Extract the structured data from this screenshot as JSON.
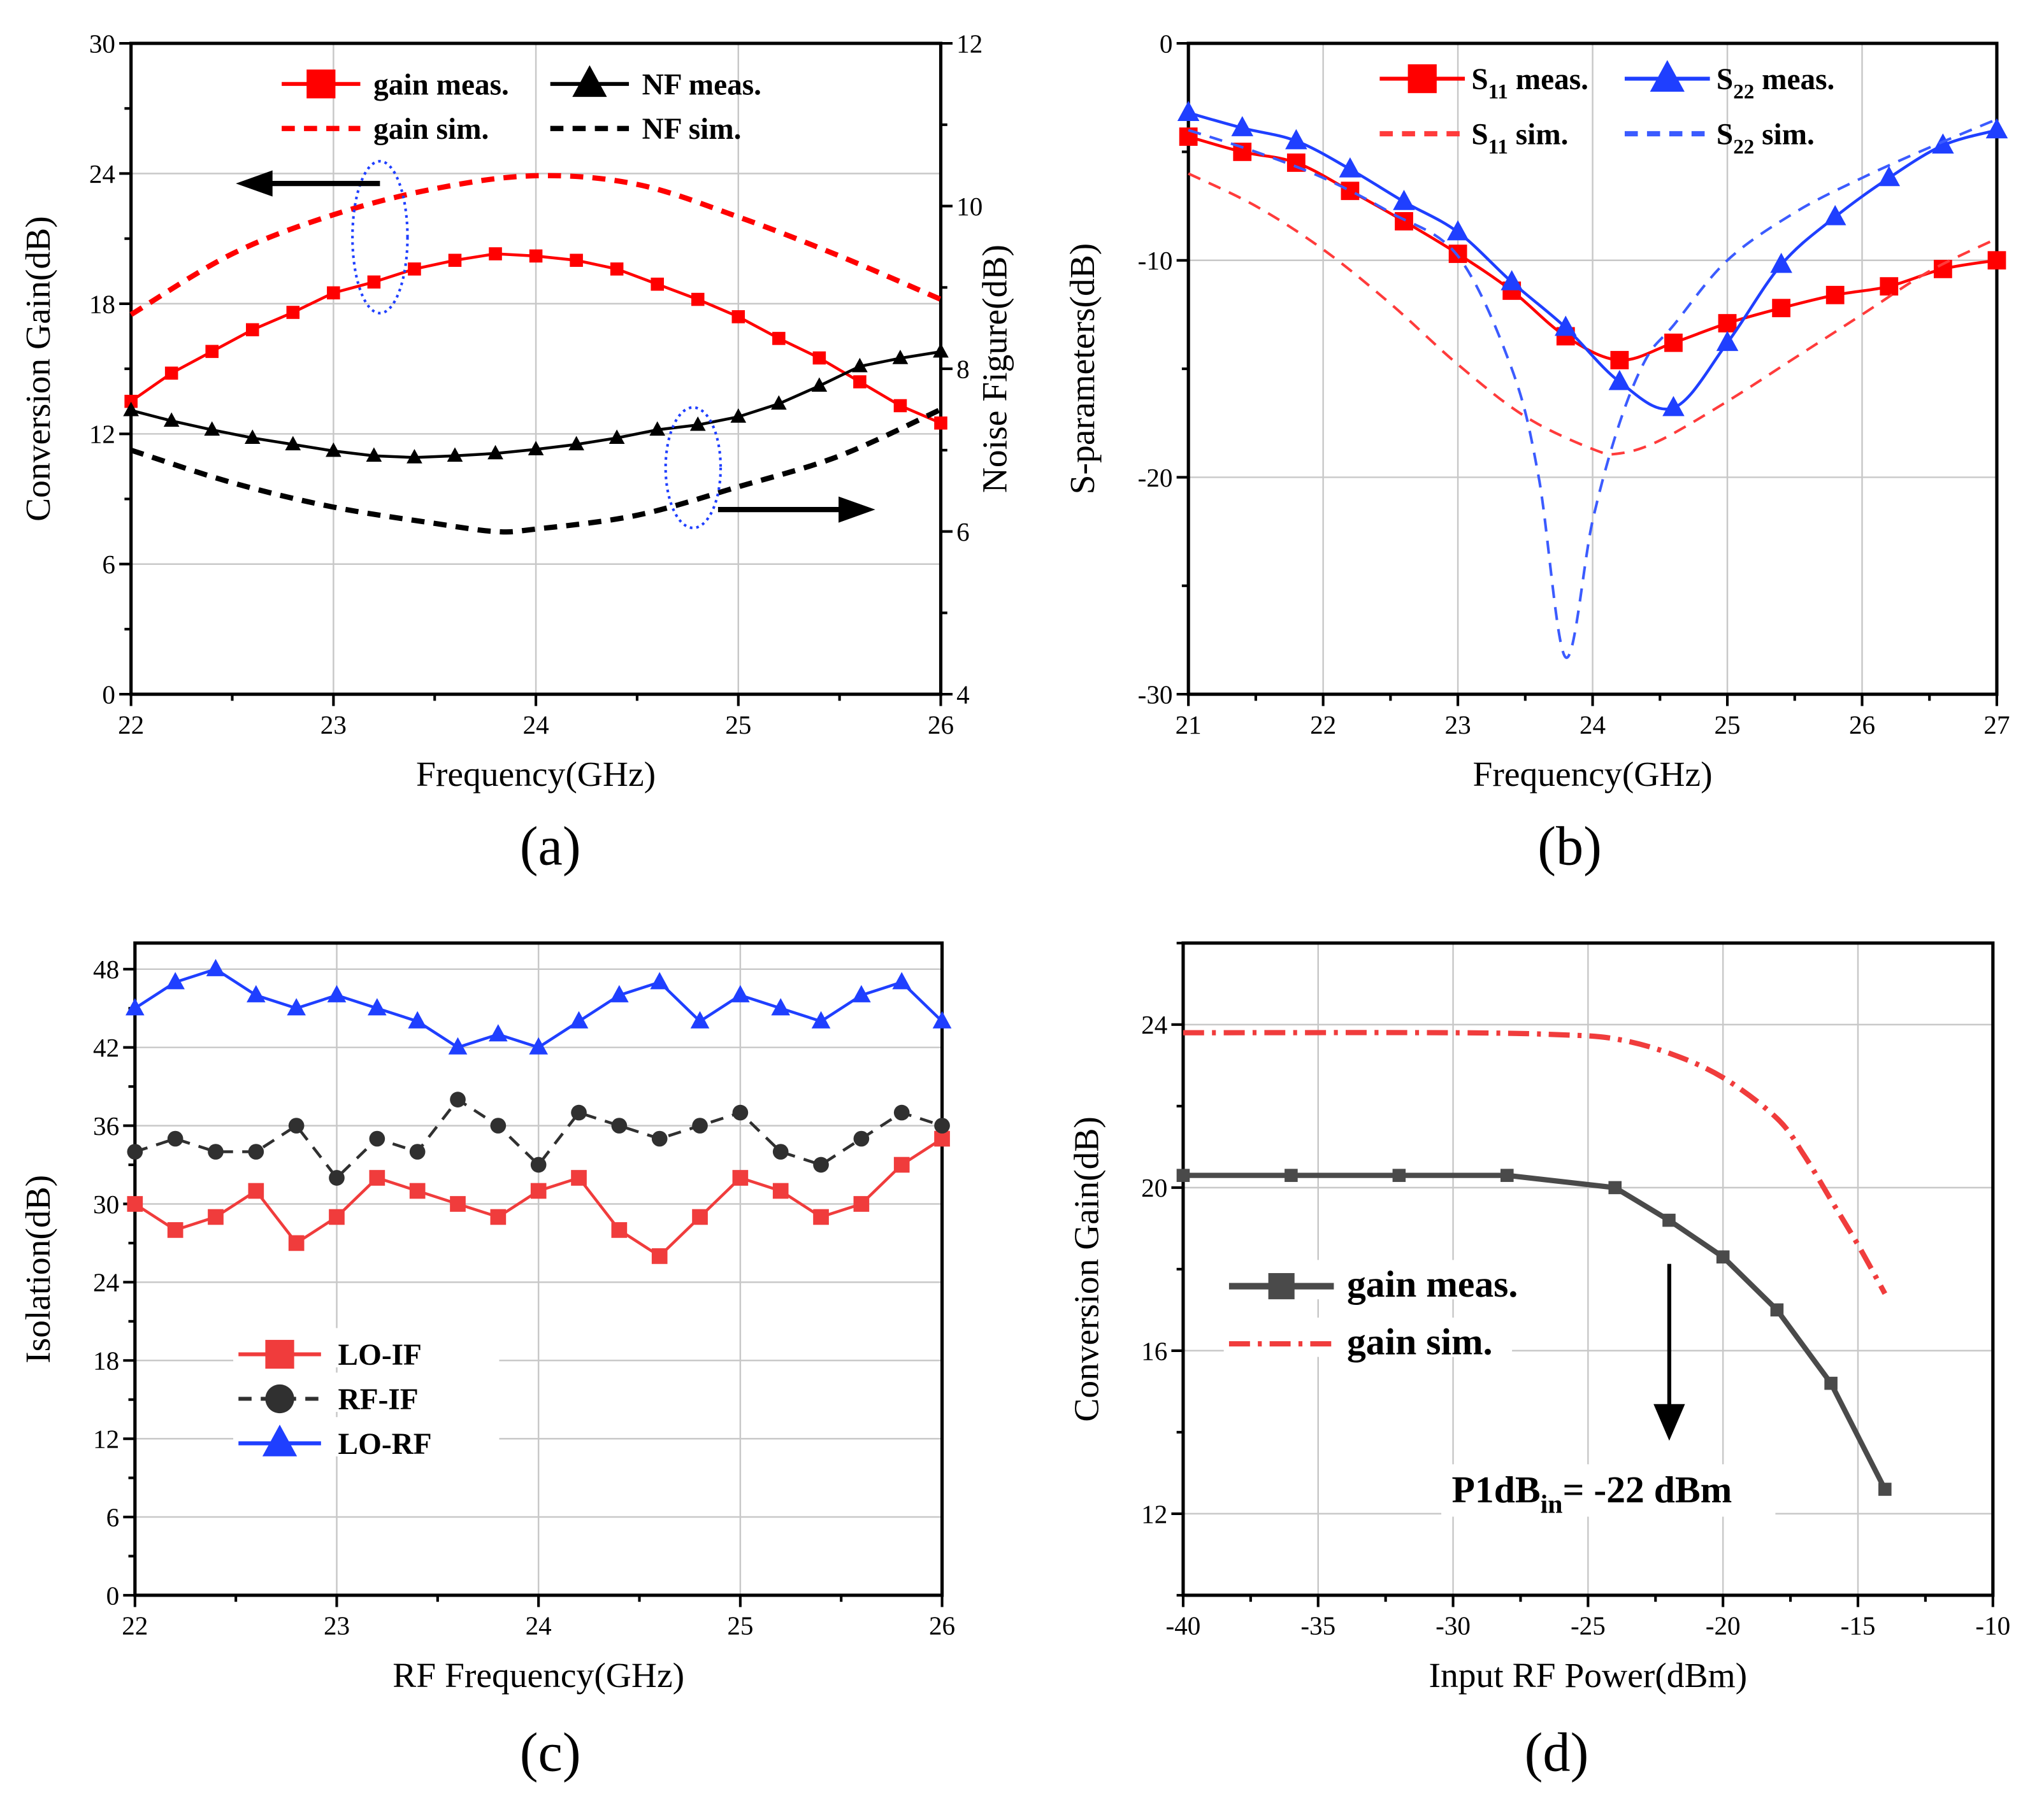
{
  "chart_data": [
    {
      "type": "line",
      "panel_label": "(a)",
      "xlabel": "Frequency(GHz)",
      "ylabel": "Conversion Gain(dB)",
      "y2label": "Noise Figure(dB)",
      "xlim": [
        22,
        26
      ],
      "ylim": [
        0,
        30
      ],
      "y2lim": [
        4,
        12
      ],
      "grid": true,
      "legend_position": "top",
      "series": [
        {
          "name": "gain meas.",
          "axis": "left",
          "color": "#ff0000",
          "marker": "square",
          "dash": "solid",
          "x": [
            22,
            22.2,
            22.4,
            22.6,
            22.8,
            23,
            23.2,
            23.4,
            23.6,
            23.8,
            24,
            24.2,
            24.4,
            24.6,
            24.8,
            25,
            25.2,
            25.4,
            25.6,
            25.8,
            26
          ],
          "y": [
            13.5,
            14.8,
            15.8,
            16.8,
            17.6,
            18.5,
            19.0,
            19.6,
            20.0,
            20.3,
            20.2,
            20.0,
            19.6,
            18.9,
            18.2,
            17.4,
            16.4,
            15.5,
            14.4,
            13.3,
            12.5
          ]
        },
        {
          "name": "NF meas.",
          "axis": "right",
          "color": "#000000",
          "marker": "triangle",
          "dash": "solid",
          "x": [
            22,
            22.2,
            22.4,
            22.6,
            22.8,
            23,
            23.2,
            23.4,
            23.6,
            23.8,
            24,
            24.2,
            24.4,
            24.6,
            24.8,
            25,
            25.2,
            25.4,
            25.6,
            25.8,
            26
          ],
          "y": [
            7.49,
            7.36,
            7.25,
            7.15,
            7.07,
            6.99,
            6.93,
            6.91,
            6.93,
            6.96,
            7.01,
            7.07,
            7.15,
            7.25,
            7.31,
            7.41,
            7.57,
            7.79,
            8.03,
            8.13,
            8.21
          ]
        },
        {
          "name": "gain sim.",
          "axis": "left",
          "color": "#ff0000",
          "marker": "none",
          "dash": "dash",
          "x": [
            22,
            22.5,
            23,
            23.5,
            24,
            24.5,
            25,
            25.5,
            26
          ],
          "y": [
            17.5,
            20.3,
            22.1,
            23.3,
            23.9,
            23.5,
            22.0,
            20.2,
            18.2
          ]
        },
        {
          "name": "NF sim.",
          "axis": "right",
          "color": "#000000",
          "marker": "none",
          "dash": "dash",
          "x": [
            22,
            22.5,
            23,
            23.5,
            23.8,
            24,
            24.5,
            25,
            25.5,
            26
          ],
          "y": [
            7.0,
            6.6,
            6.3,
            6.1,
            6.0,
            6.03,
            6.2,
            6.55,
            6.93,
            7.5
          ]
        }
      ]
    },
    {
      "type": "line",
      "panel_label": "(b)",
      "xlabel": "Frequency(GHz)",
      "ylabel": "S-parameters(dB)",
      "xlim": [
        21,
        27
      ],
      "ylim": [
        -30,
        0
      ],
      "grid": true,
      "legend_position": "top",
      "series": [
        {
          "name": "S11 meas.",
          "color": "#ff0000",
          "marker": "square",
          "dash": "solid",
          "x": [
            21,
            21.4,
            21.8,
            22.2,
            22.6,
            23,
            23.4,
            23.8,
            24.2,
            24.6,
            25,
            25.4,
            25.8,
            26.2,
            26.6,
            27
          ],
          "y": [
            -4.3,
            -5.0,
            -5.5,
            -6.8,
            -8.2,
            -9.7,
            -11.4,
            -13.5,
            -14.6,
            -13.8,
            -12.9,
            -12.2,
            -11.6,
            -11.2,
            -10.4,
            -10.0
          ]
        },
        {
          "name": "S22 meas.",
          "color": "#1f3fff",
          "marker": "triangle",
          "dash": "solid",
          "x": [
            21,
            21.4,
            21.8,
            22.2,
            22.6,
            23,
            23.4,
            23.8,
            24.2,
            24.6,
            25,
            25.4,
            25.8,
            26.2,
            26.6,
            27
          ],
          "y": [
            -3.2,
            -3.9,
            -4.5,
            -5.8,
            -7.3,
            -8.7,
            -11.0,
            -13.1,
            -15.6,
            -16.8,
            -13.8,
            -10.2,
            -8.0,
            -6.2,
            -4.7,
            -4.0
          ]
        },
        {
          "name": "S11 sim.",
          "color": "#ff3b3b",
          "marker": "none",
          "dash": "dash",
          "x": [
            21,
            21.5,
            22,
            22.5,
            23,
            23.5,
            24,
            24.2,
            24.5,
            25,
            25.5,
            26,
            26.5,
            27
          ],
          "y": [
            -6.0,
            -7.5,
            -9.5,
            -12.0,
            -14.8,
            -17.2,
            -18.7,
            -18.9,
            -18.3,
            -16.5,
            -14.5,
            -12.5,
            -10.5,
            -9.0
          ]
        },
        {
          "name": "S22 sim.",
          "color": "#3b5bff",
          "marker": "none",
          "dash": "dash",
          "x": [
            21,
            21.5,
            22,
            22.5,
            23,
            23.4,
            23.6,
            23.8,
            24,
            24.2,
            24.4,
            24.6,
            25,
            25.5,
            26,
            26.5,
            27
          ],
          "y": [
            -4.0,
            -5.0,
            -6.2,
            -7.8,
            -9.8,
            -15,
            -20,
            -28.3,
            -22,
            -17.5,
            -14.5,
            -13.0,
            -10.0,
            -7.8,
            -6.2,
            -4.8,
            -3.5
          ]
        }
      ]
    },
    {
      "type": "line",
      "panel_label": "(c)",
      "xlabel": "RF Frequency(GHz)",
      "ylabel": "Isolation(dB)",
      "xlim": [
        22,
        26
      ],
      "ylim": [
        0,
        50
      ],
      "grid": true,
      "legend_position": "lower-left",
      "series": [
        {
          "name": "LO-IF",
          "color": "#f03c3c",
          "marker": "square",
          "dash": "solid",
          "x": [
            22,
            22.2,
            22.4,
            22.6,
            22.8,
            23,
            23.2,
            23.4,
            23.6,
            23.8,
            24,
            24.2,
            24.4,
            24.6,
            24.8,
            25,
            25.2,
            25.4,
            25.6,
            25.8,
            26
          ],
          "y": [
            30,
            28,
            29,
            31,
            27,
            29,
            32,
            31,
            30,
            29,
            31,
            32,
            28,
            26,
            29,
            32,
            31,
            29,
            30,
            33,
            35
          ]
        },
        {
          "name": "RF-IF",
          "color": "#303030",
          "marker": "circle",
          "dash": "dash",
          "x": [
            22,
            22.2,
            22.4,
            22.6,
            22.8,
            23,
            23.2,
            23.4,
            23.6,
            23.8,
            24,
            24.2,
            24.4,
            24.6,
            24.8,
            25,
            25.2,
            25.4,
            25.6,
            25.8,
            26
          ],
          "y": [
            34,
            35,
            34,
            34,
            36,
            32,
            35,
            34,
            38,
            36,
            33,
            37,
            36,
            35,
            36,
            37,
            34,
            33,
            35,
            37,
            36
          ]
        },
        {
          "name": "LO-RF",
          "color": "#1f3fff",
          "marker": "triangle",
          "dash": "solid",
          "x": [
            22,
            22.2,
            22.4,
            22.6,
            22.8,
            23,
            23.2,
            23.4,
            23.6,
            23.8,
            24,
            24.2,
            24.4,
            24.6,
            24.8,
            25,
            25.2,
            25.4,
            25.6,
            25.8,
            26
          ],
          "y": [
            45,
            47,
            48,
            46,
            45,
            46,
            45,
            44,
            42,
            43,
            42,
            44,
            46,
            47,
            44,
            46,
            45,
            44,
            46,
            47,
            44
          ]
        }
      ]
    },
    {
      "type": "line",
      "panel_label": "(d)",
      "xlabel": "Input RF Power(dBm)",
      "ylabel": "Conversion Gain(dB)",
      "xlim": [
        -40,
        -10
      ],
      "ylim": [
        10,
        26
      ],
      "grid": true,
      "legend_position": "middle-left",
      "annotation": [
        "P1dB",
        "in",
        "= -22 dBm"
      ],
      "series": [
        {
          "name": "gain meas.",
          "color": "#4a4a4a",
          "marker": "square",
          "dash": "solid",
          "x": [
            -40,
            -36,
            -32,
            -28,
            -24,
            -22,
            -20,
            -18,
            -16,
            -14
          ],
          "y": [
            20.3,
            20.3,
            20.3,
            20.3,
            20.0,
            19.2,
            18.3,
            17.0,
            15.2,
            12.6
          ]
        },
        {
          "name": "gain sim.",
          "color": "#f03c3c",
          "marker": "none",
          "dash": "dashdot",
          "x": [
            -40,
            -30,
            -26,
            -24,
            -22,
            -20,
            -18,
            -17,
            -16,
            -15,
            -14
          ],
          "y": [
            23.8,
            23.8,
            23.75,
            23.65,
            23.3,
            22.7,
            21.7,
            20.8,
            19.7,
            18.6,
            17.4
          ]
        }
      ]
    }
  ]
}
